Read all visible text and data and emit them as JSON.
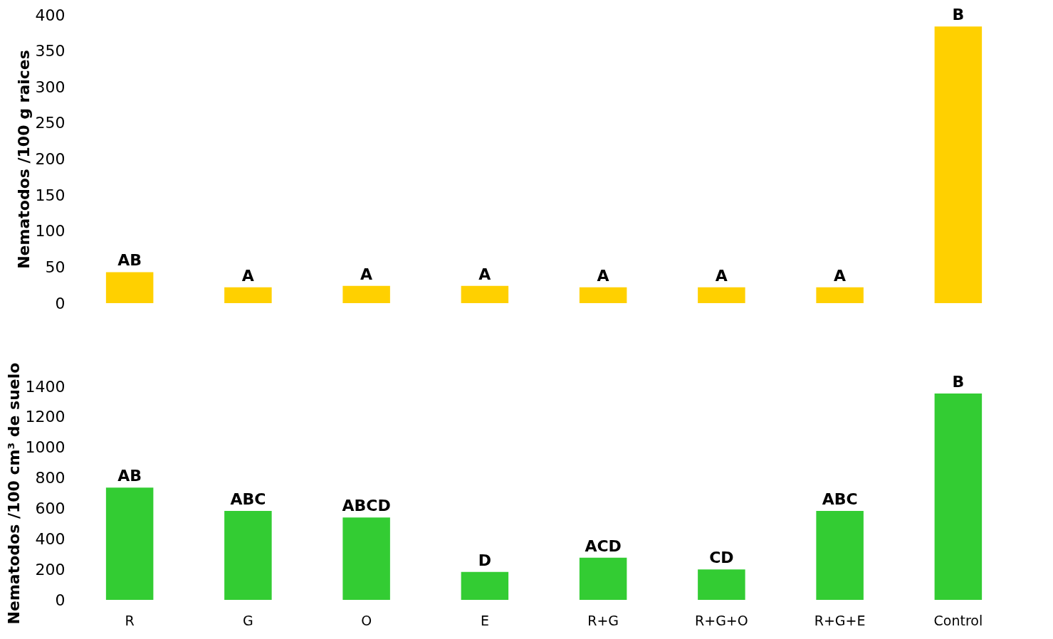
{
  "chart_data": [
    {
      "type": "bar",
      "ylabel": "Nematodos /100 g raices",
      "categories": [
        null,
        null,
        null,
        null,
        null,
        null,
        null,
        null
      ],
      "grid": false,
      "values": [
        43,
        22,
        24,
        24,
        22,
        22,
        22,
        384
      ],
      "color": "#ffd000",
      "value_labels": [
        "AB",
        "A",
        "A",
        "A",
        "A",
        "A",
        "A",
        "B"
      ],
      "ylim": [
        0,
        400
      ],
      "yticks": [
        0,
        50,
        100,
        150,
        200,
        250,
        300,
        350,
        400
      ]
    },
    {
      "type": "bar",
      "ylabel": "Nematodos /100  cm³ de suelo",
      "categories": [
        "R",
        "G",
        "O",
        "E",
        "R+G",
        "R+G+O",
        "R+G+E",
        "Control"
      ],
      "grid": false,
      "values": [
        736,
        583,
        540,
        183,
        277,
        200,
        583,
        1353
      ],
      "color": "#33cc33",
      "value_labels": [
        "AB",
        "ABC",
        "ABCD",
        "D",
        "ACD",
        "CD",
        "ABC",
        "B"
      ],
      "ylim": [
        0,
        1400
      ],
      "yticks": [
        0,
        200,
        400,
        600,
        800,
        1000,
        1200,
        1400
      ]
    }
  ]
}
